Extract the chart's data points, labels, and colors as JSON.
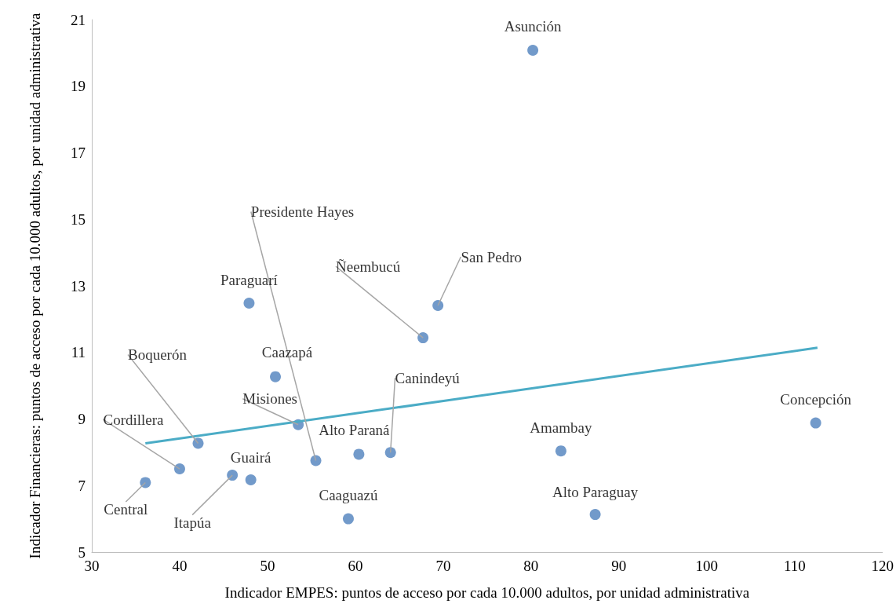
{
  "chart_data": {
    "type": "scatter",
    "xlabel": "Indicador EMPES: puntos de acceso por cada 10.000 adultos, por unidad administrativa",
    "ylabel": "Indicador Financieras: puntos de acceso por cada 10.000 adultos, por unidad administrativa",
    "xlim": [
      30,
      120
    ],
    "xticks": [
      30,
      40,
      50,
      60,
      70,
      80,
      90,
      100,
      110,
      120
    ],
    "ylim": [
      5,
      21
    ],
    "yticks": [
      5,
      7,
      9,
      11,
      13,
      15,
      17,
      19,
      21
    ],
    "grid": false,
    "series": [
      {
        "marker": "circle",
        "color": "#4f81bd",
        "x": [
          80.2,
          69.4,
          67.7,
          47.9,
          50.9,
          53.5,
          42.1,
          40.0,
          36.1,
          46.0,
          48.1,
          55.5,
          60.4,
          64.0,
          59.2,
          83.4,
          87.3,
          112.4
        ],
        "values": [
          20.08,
          12.41,
          11.44,
          12.48,
          10.27,
          8.83,
          8.27,
          7.5,
          7.09,
          7.31,
          7.17,
          7.75,
          7.94,
          7.99,
          6.0,
          8.04,
          6.13,
          8.88
        ]
      },
      {
        "type": "line",
        "color": "#4bacc6",
        "x": [
          36.1,
          112.6
        ],
        "values": [
          8.27,
          11.14
        ]
      }
    ],
    "annotations": [
      {
        "text": "Asunción",
        "x": 80.2,
        "y": 20.08
      },
      {
        "text": "San Pedro",
        "x": 69.4,
        "y": 12.41
      },
      {
        "text": "Ñeembucú",
        "x": 67.7,
        "y": 11.44
      },
      {
        "text": "Paraguarí",
        "x": 47.9,
        "y": 12.48
      },
      {
        "text": "Caazapá",
        "x": 50.9,
        "y": 10.27
      },
      {
        "text": "Misiones",
        "x": 53.5,
        "y": 8.83
      },
      {
        "text": "Boquerón",
        "x": 42.1,
        "y": 8.27
      },
      {
        "text": "Cordillera",
        "x": 40.0,
        "y": 7.5
      },
      {
        "text": "Central",
        "x": 36.1,
        "y": 7.09
      },
      {
        "text": "Itapúa",
        "x": 46.0,
        "y": 7.31
      },
      {
        "text": "Guairá",
        "x": 48.1,
        "y": 7.17
      },
      {
        "text": "Presidente Hayes",
        "x": 55.5,
        "y": 7.75
      },
      {
        "text": "Alto Paraná",
        "x": 60.4,
        "y": 7.94
      },
      {
        "text": "Canindeyú",
        "x": 64.0,
        "y": 7.99
      },
      {
        "text": "Caaguazú",
        "x": 59.2,
        "y": 6.0
      },
      {
        "text": "Amambay",
        "x": 83.4,
        "y": 8.04
      },
      {
        "text": "Alto Paraguay",
        "x": 87.3,
        "y": 6.13
      },
      {
        "text": "Concepción",
        "x": 112.4,
        "y": 8.88
      }
    ]
  }
}
